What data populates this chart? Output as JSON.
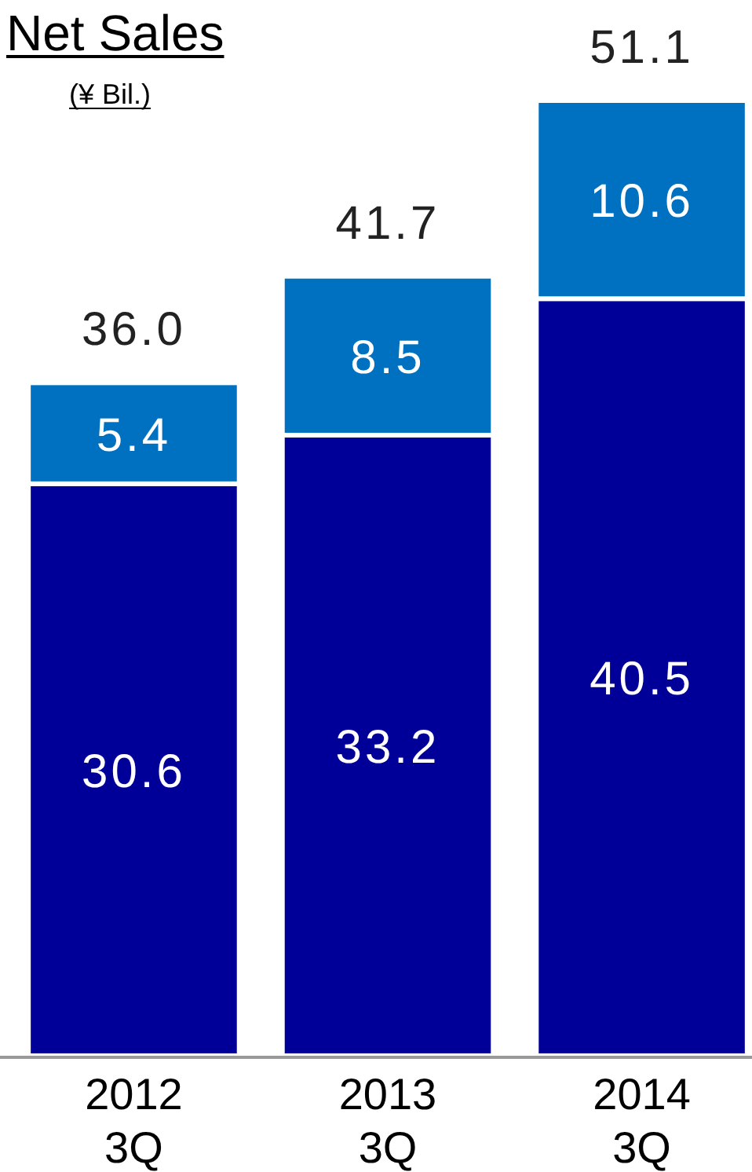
{
  "chart_data": {
    "type": "bar",
    "title": "Net Sales",
    "subtitle": "(¥ Bil.)",
    "categories": [
      "2012 3Q",
      "2013 3Q",
      "2014 3Q"
    ],
    "stacked": true,
    "data_labels": true,
    "series": [
      {
        "color": "#000099",
        "values": [
          30.6,
          33.2,
          40.5
        ]
      },
      {
        "color": "#0070c0",
        "values": [
          5.4,
          8.5,
          10.6
        ]
      }
    ],
    "totals": [
      "36.0",
      "41.7",
      "51.1"
    ]
  }
}
